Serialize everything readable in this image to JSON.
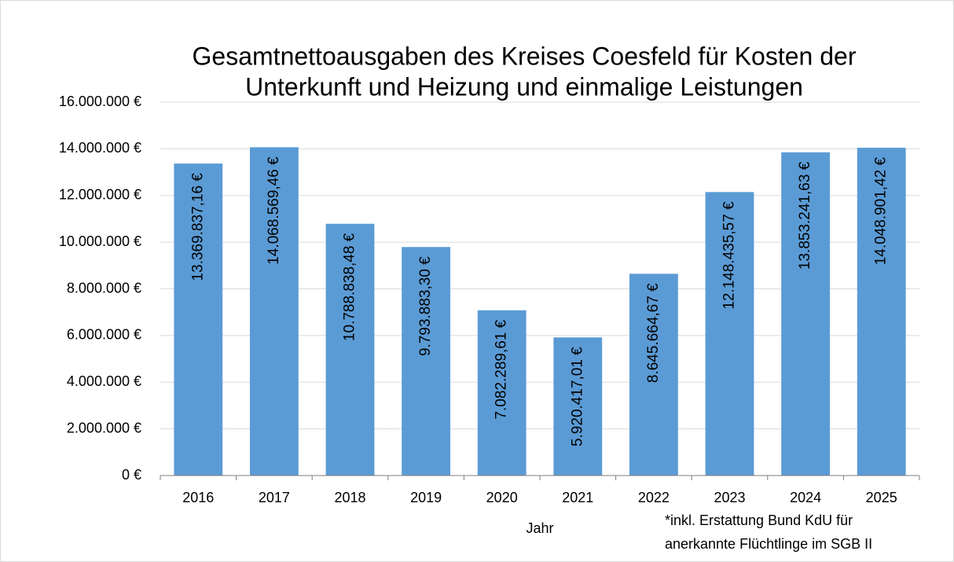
{
  "chart_data": {
    "type": "bar",
    "title": [
      "Gesamtnettoausgaben des Kreises Coesfeld für Kosten der",
      "Unterkunft und Heizung und einmalige Leistungen"
    ],
    "x_label": "Jahr",
    "annotation": [
      "*inkl. Erstattung Bund KdU für",
      "anerkannte Flüchtlinge im SGB II"
    ],
    "categories": [
      "2016",
      "2017",
      "2018",
      "2019",
      "2020",
      "2021",
      "2022",
      "2023",
      "2024",
      "2025"
    ],
    "values": [
      13369837.16,
      14068569.46,
      10788838.48,
      9793883.3,
      7082289.61,
      5920417.01,
      8645664.67,
      12148435.57,
      13853241.63,
      14048901.42
    ],
    "value_labels": [
      "13.369.837,16 €",
      "14.068.569,46 €",
      "10.788.838,48 €",
      "9.793.883,30 €",
      "7.082.289,61 €",
      "5.920.417,01 €",
      "8.645.664,67 €",
      "12.148.435,57 €",
      "13.853.241,63 €",
      "14.048.901,42 €"
    ],
    "color": "#5b9bd5",
    "ylim": [
      0,
      16000000
    ],
    "yticks": [
      {
        "value": 0,
        "label": "0 €"
      },
      {
        "value": 2000000,
        "label": "2.000.000 €"
      },
      {
        "value": 4000000,
        "label": "4.000.000 €"
      },
      {
        "value": 6000000,
        "label": "6.000.000 €"
      },
      {
        "value": 8000000,
        "label": "8.000.000 €"
      },
      {
        "value": 10000000,
        "label": "10.000.000 €"
      },
      {
        "value": 12000000,
        "label": "12.000.000 €"
      },
      {
        "value": 14000000,
        "label": "14.000.000 €"
      },
      {
        "value": 16000000,
        "label": "16.000.000 €"
      }
    ],
    "grid": true
  }
}
